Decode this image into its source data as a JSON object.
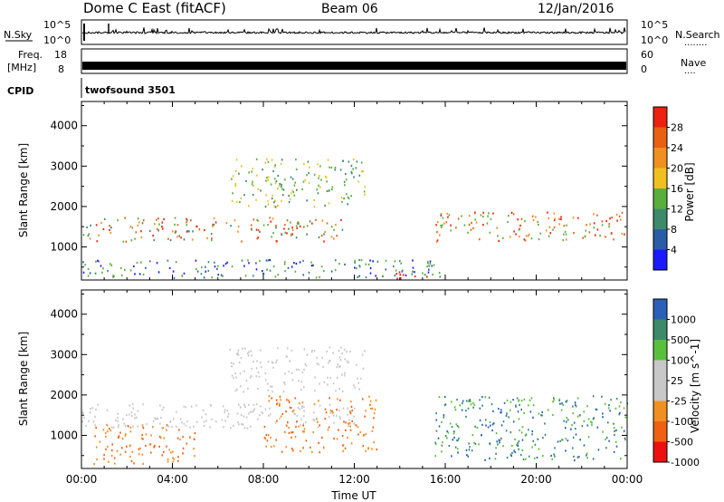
{
  "header": {
    "title": "Dome C East (fitACF)",
    "beam": "Beam 06",
    "date": "12/Jan/2016"
  },
  "nsky_panel": {
    "label": "N.Sky",
    "right_label": "N.Search",
    "left_ticks": [
      "10^5",
      "10^0"
    ],
    "right_ticks": [
      "10^5",
      "10^0"
    ],
    "dots": "........"
  },
  "freq_panel": {
    "label_line1": "Freq.",
    "label_line2": "[MHz]",
    "right_label": "Nave",
    "left_ticks": [
      "18",
      "8"
    ],
    "right_ticks": [
      "60",
      "0"
    ],
    "dots": "...."
  },
  "cpid_panel": {
    "label": "CPID",
    "program": "twofsound 3501"
  },
  "colors": {
    "power": [
      "#1a1aff",
      "#2a5ca8",
      "#3c8a6a",
      "#5aaf3c",
      "#f0c020",
      "#f09020",
      "#e86010",
      "#ee2010"
    ],
    "velocity": [
      "#ee1010",
      "#f06010",
      "#f09020",
      "#c8c8c8",
      "#c8c8c8",
      "#5ac03c",
      "#3c8a6a",
      "#2a60b8"
    ]
  },
  "chart_data": [
    {
      "type": "heatmap",
      "title": "",
      "xlabel": "",
      "ylabel": "Slant Range [km]",
      "xlim": [
        0,
        24
      ],
      "ylim": [
        180,
        4600
      ],
      "x_ticks": [
        "00:00",
        "04:00",
        "08:00",
        "12:00",
        "16:00",
        "20:00",
        "00:00"
      ],
      "y_ticks": [
        1000,
        2000,
        3000,
        4000
      ],
      "colorbar": {
        "label": "Power [dB]",
        "ticks": [
          "4",
          "8",
          "12",
          "16",
          "20",
          "24",
          "28"
        ]
      },
      "echo_regions": [
        {
          "t0": 0.0,
          "t1": 11.5,
          "r0": 1150,
          "r1": 1750,
          "level": "12-24 dB"
        },
        {
          "t0": 15.5,
          "t1": 24.0,
          "r0": 1150,
          "r1": 1900,
          "level": "12-28 dB"
        },
        {
          "t0": 6.5,
          "t1": 12.5,
          "r0": 2000,
          "r1": 3200,
          "level": "8-20 dB"
        },
        {
          "t0": 13.8,
          "t1": 15.6,
          "r0": 200,
          "r1": 450,
          "level": "28 dB"
        },
        {
          "t0": 0.0,
          "t1": 16.0,
          "r0": 250,
          "r1": 700,
          "level": "4-16 dB"
        }
      ]
    },
    {
      "type": "heatmap",
      "title": "",
      "xlabel": "Time UT",
      "ylabel": "Slant Range [km]",
      "xlim": [
        0,
        24
      ],
      "ylim": [
        180,
        4600
      ],
      "x_ticks": [
        "00:00",
        "04:00",
        "08:00",
        "12:00",
        "16:00",
        "20:00",
        "00:00"
      ],
      "y_ticks": [
        1000,
        2000,
        3000,
        4000
      ],
      "colorbar": {
        "label": "Velocity [m s^-1]",
        "ticks": [
          "1000",
          "500",
          "100",
          "25",
          "-25",
          "-100",
          "-500",
          "-1000"
        ]
      },
      "echo_regions": [
        {
          "t0": 0.0,
          "t1": 12.0,
          "r0": 1200,
          "r1": 1800,
          "level": "-25 to 25 m/s"
        },
        {
          "t0": 6.5,
          "t1": 12.5,
          "r0": 2100,
          "r1": 3200,
          "level": "-25 to 25 m/s"
        },
        {
          "t0": 15.5,
          "t1": 24.0,
          "r0": 400,
          "r1": 2000,
          "level": "25 to 500 m/s"
        },
        {
          "t0": 8.0,
          "t1": 13.0,
          "r0": 600,
          "r1": 2000,
          "level": "-100 to -500 m/s"
        },
        {
          "t0": 0.5,
          "t1": 5.0,
          "r0": 300,
          "r1": 1300,
          "level": "-100 to -500 m/s"
        }
      ]
    }
  ]
}
